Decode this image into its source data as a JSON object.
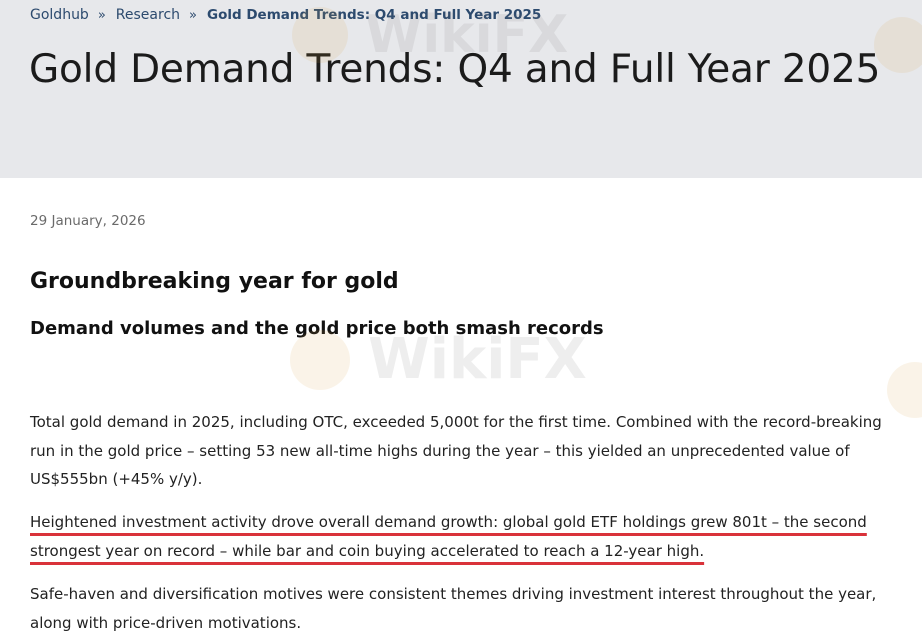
{
  "breadcrumb": {
    "items": [
      "Goldhub",
      "Research"
    ],
    "current": "Gold Demand Trends: Q4 and Full Year 2025"
  },
  "header": {
    "title": "Gold Demand Trends: Q4 and Full Year 2025"
  },
  "article": {
    "date": "29 January, 2026",
    "heading": "Groundbreaking year for gold",
    "subheading": "Demand volumes and the gold price both smash records",
    "paragraphs": [
      "Total gold demand in 2025, including OTC, exceeded 5,000t for the first time. Combined with the record-breaking run in the gold price – setting 53 new all-time highs during the year – this yielded an unprecedented value of US$555bn (+45% y/y).",
      "Heightened investment activity drove overall demand growth: global gold ETF holdings grew 801t – the second strongest year on record – while bar and coin buying accelerated to reach a 12-year high.",
      "Safe-haven and diversification motives were consistent themes driving investment interest throughout the year, along with price-driven motivations."
    ]
  },
  "watermark": {
    "text": "WikiFX"
  },
  "colors": {
    "hero_background": "#e7e8eb",
    "breadcrumb_link": "#2c4a6e",
    "highlight_underline": "#d9323a"
  }
}
